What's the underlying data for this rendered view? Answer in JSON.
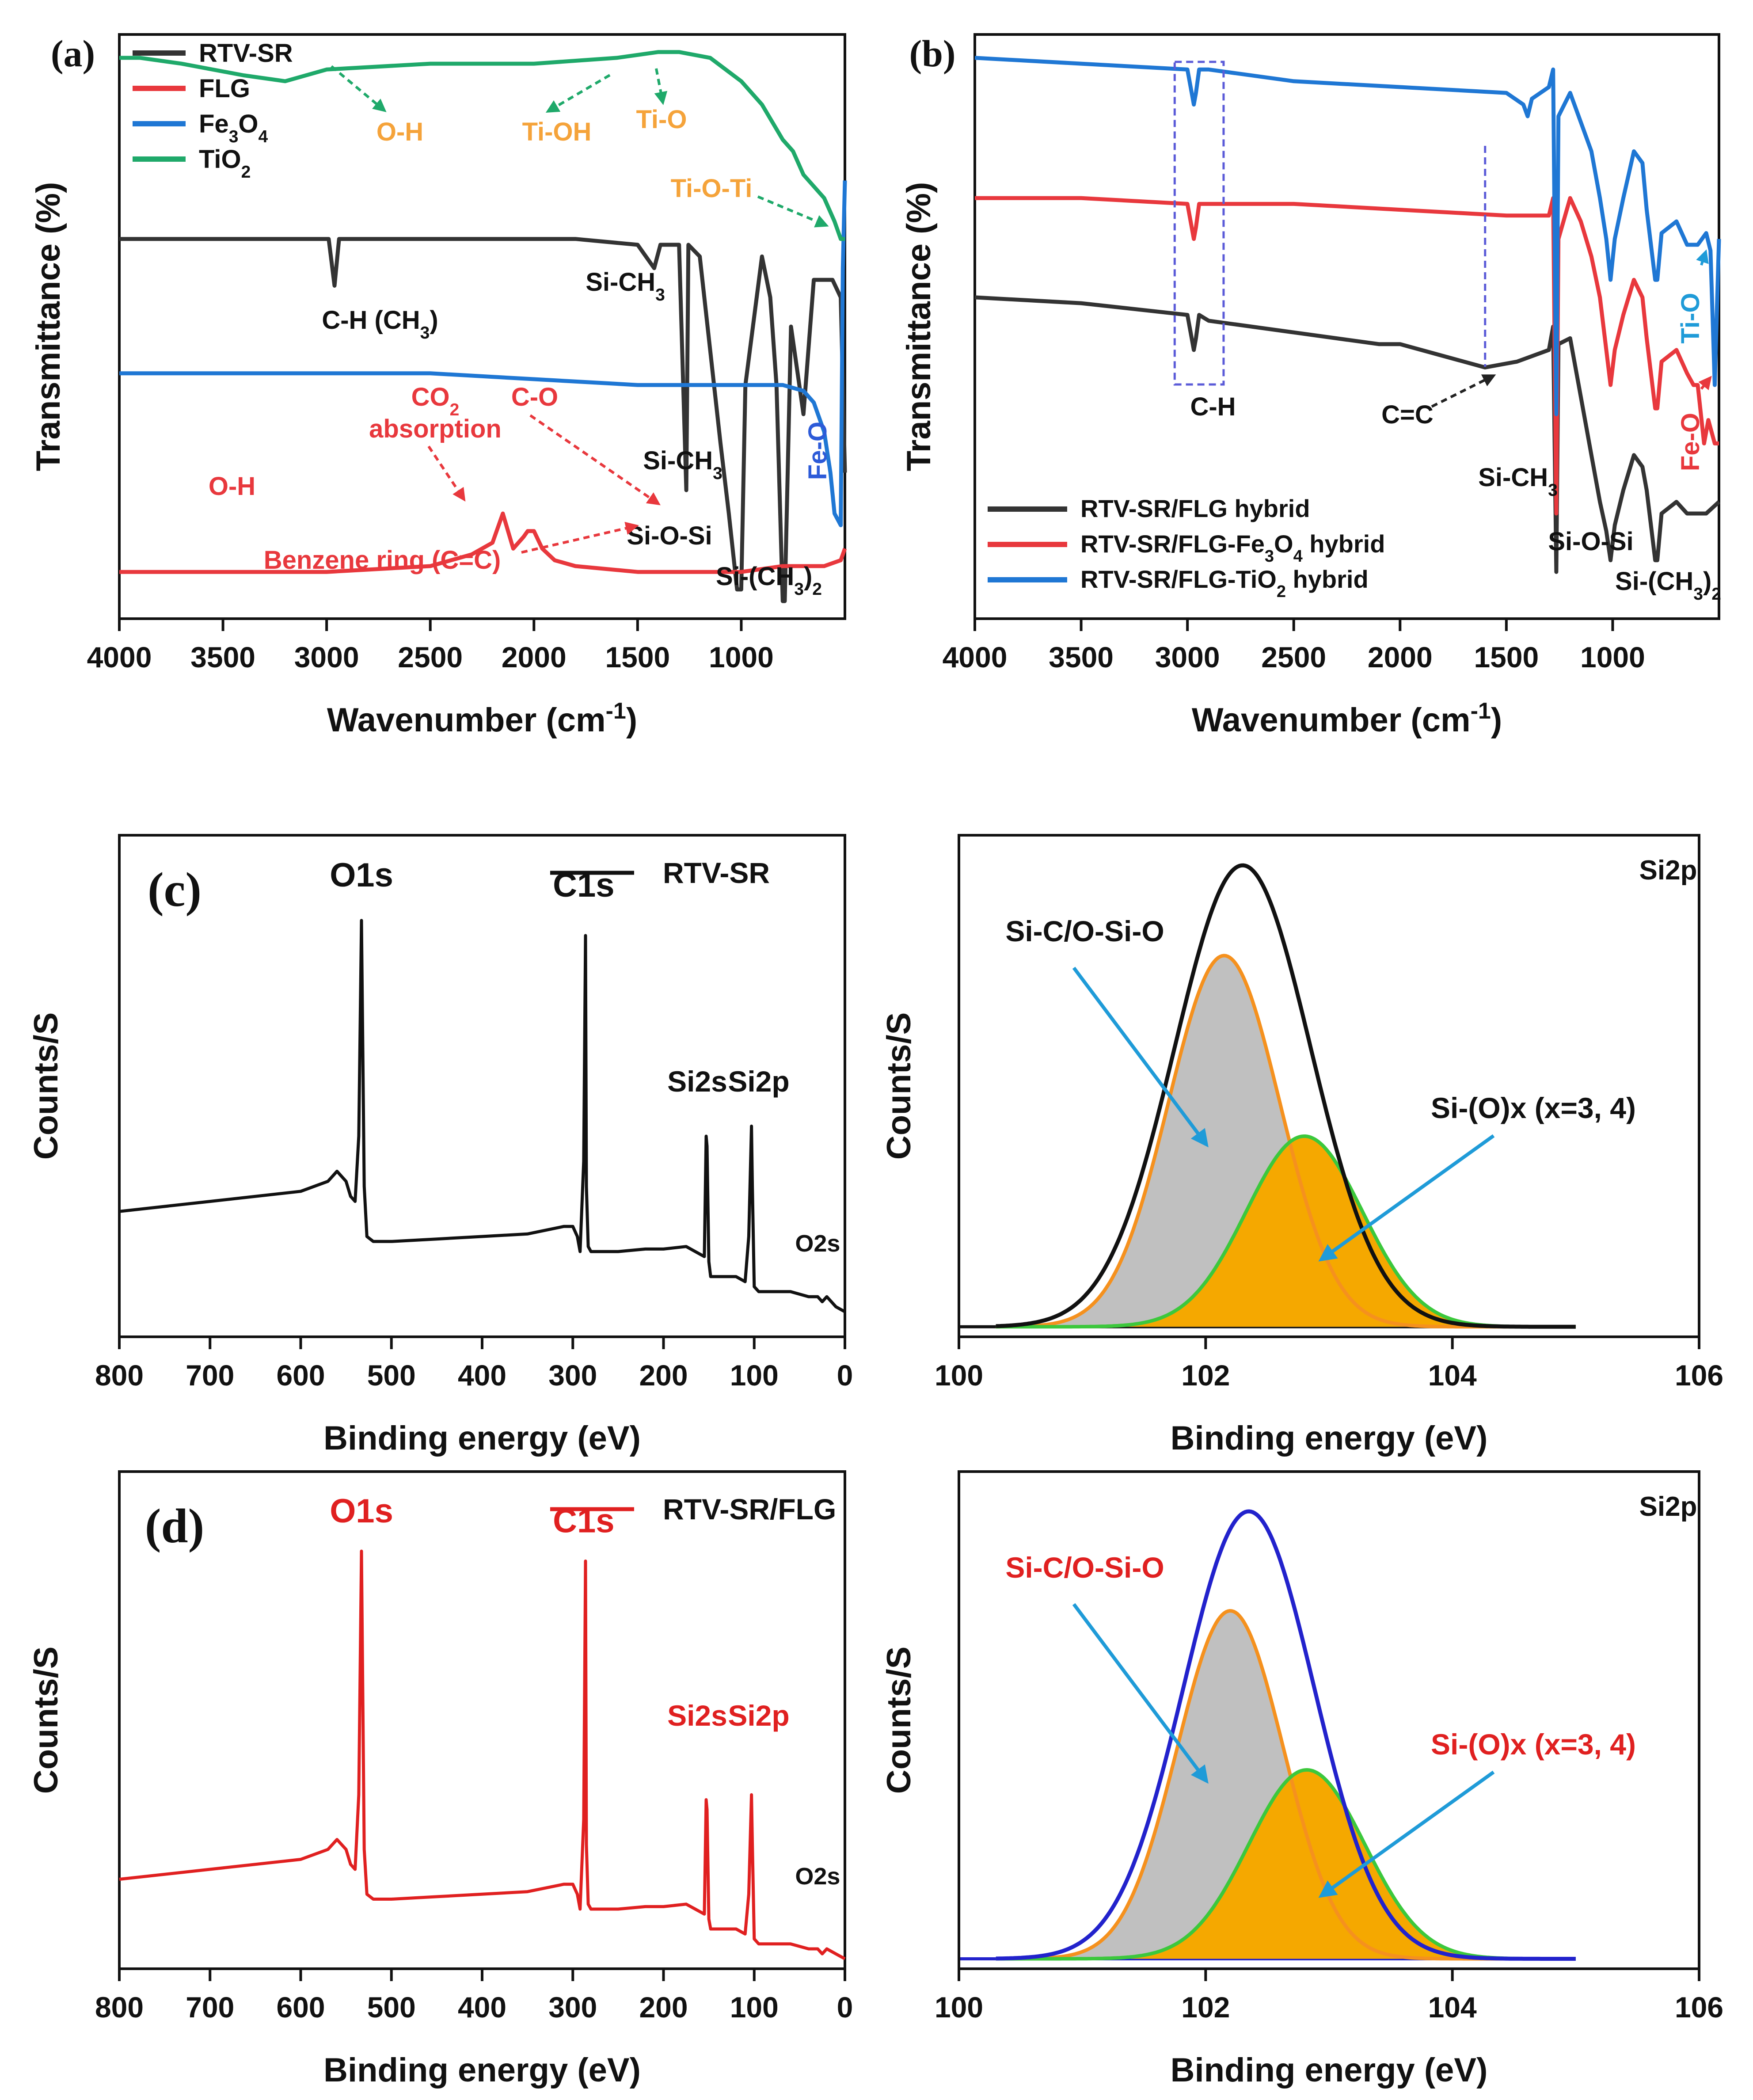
{
  "chart_data": [
    {
      "id": "a",
      "type": "line",
      "panel_label": "(a)",
      "title": "",
      "xlabel": "Wavenumber (cm-1)",
      "ylabel": "Transmittance (%)",
      "xlim": [
        4000,
        500
      ],
      "xticks": [
        4000,
        3500,
        3000,
        2500,
        2000,
        1500,
        1000
      ],
      "ylim": [
        0,
        100
      ],
      "grid": false,
      "legend_position": "top-left",
      "series": [
        {
          "name": "RTV-SR",
          "color": "#333333",
          "x": [
            4000,
            3500,
            3100,
            2990,
            2962,
            2940,
            2700,
            2300,
            1800,
            1500,
            1420,
            1390,
            1300,
            1265,
            1255,
            1200,
            1100,
            1060,
            1020,
            1000,
            980,
            900,
            860,
            830,
            800,
            790,
            760,
            700,
            650,
            600,
            560,
            520,
            500
          ],
          "y": [
            65,
            65,
            65,
            65,
            57,
            65,
            65,
            65,
            65,
            64,
            60,
            64,
            64,
            22,
            64,
            62,
            30,
            18,
            5,
            5,
            40,
            62,
            55,
            40,
            3,
            3,
            50,
            35,
            58,
            58,
            58,
            55,
            25
          ]
        },
        {
          "name": "FLG",
          "color": "#e8383d",
          "x": [
            4000,
            3500,
            3000,
            2500,
            2400,
            2300,
            2200,
            2150,
            2100,
            2050,
            2030,
            2000,
            1960,
            1900,
            1800,
            1500,
            1200,
            1000,
            800,
            600,
            520,
            500
          ],
          "y": [
            8,
            8,
            8,
            9,
            10,
            11,
            13,
            18,
            12,
            14,
            15,
            15,
            12,
            10,
            9,
            8,
            8,
            8,
            9,
            9,
            10,
            12
          ]
        },
        {
          "name": "Fe3O4",
          "color": "#1f77d4",
          "x": [
            4000,
            3500,
            3000,
            2500,
            2000,
            1500,
            1000,
            800,
            700,
            650,
            600,
            570,
            550,
            520,
            510,
            500
          ],
          "y": [
            42,
            42,
            42,
            42,
            41,
            40,
            40,
            40,
            39,
            37,
            32,
            25,
            18,
            16,
            60,
            75
          ]
        },
        {
          "name": "TiO2",
          "color": "#1fa96a",
          "x": [
            4000,
            3900,
            3700,
            3400,
            3200,
            3000,
            2500,
            2000,
            1600,
            1400,
            1300,
            1150,
            1000,
            900,
            850,
            800,
            750,
            700,
            650,
            600,
            550,
            520,
            500
          ],
          "y": [
            96,
            96,
            95,
            93,
            92,
            94,
            95,
            95,
            96,
            97,
            97,
            96,
            92,
            88,
            85,
            82,
            80,
            76,
            74,
            72,
            68,
            65,
            65
          ]
        }
      ],
      "annotations": [
        "O-H",
        "Ti-OH",
        "Ti-O",
        "Ti-O-Ti",
        "C-H (CH3)",
        "Si-CH3",
        "Si-CH3",
        "Fe-O",
        "CO2",
        "absorption",
        "C-O",
        "O-H",
        "Si-O-Si",
        "Benzene ring (C=C)",
        "Si-(CH3)2"
      ]
    },
    {
      "id": "b",
      "type": "line",
      "panel_label": "(b)",
      "title": "",
      "xlabel": "Wavenumber (cm-1)",
      "ylabel": "Transmittance (%)",
      "xlim": [
        4000,
        500
      ],
      "xticks": [
        4000,
        3500,
        3000,
        2500,
        2000,
        1500,
        1000
      ],
      "ylim": [
        0,
        100
      ],
      "grid": false,
      "legend_position": "bottom-left",
      "series": [
        {
          "name": "RTV-SR/FLG hybrid",
          "color": "#333333",
          "x": [
            4000,
            3500,
            3000,
            2970,
            2960,
            2945,
            2900,
            2500,
            2100,
            2000,
            1800,
            1600,
            1450,
            1300,
            1280,
            1265,
            1255,
            1200,
            1150,
            1100,
            1060,
            1030,
            1010,
            990,
            950,
            900,
            860,
            840,
            800,
            790,
            770,
            700,
            650,
            600,
            560,
            500
          ],
          "y": [
            55,
            54,
            52,
            46,
            48,
            52,
            51,
            49,
            47,
            47,
            45,
            43,
            44,
            46,
            50,
            8,
            47,
            48,
            38,
            28,
            20,
            15,
            10,
            16,
            22,
            28,
            26,
            22,
            10,
            10,
            18,
            20,
            18,
            18,
            18,
            20
          ]
        },
        {
          "name": "RTV-SR/FLG-Fe3O4 hybrid",
          "color": "#e8383d",
          "x": [
            4000,
            3500,
            3000,
            2970,
            2960,
            2945,
            2900,
            2500,
            2000,
            1500,
            1300,
            1280,
            1265,
            1255,
            1200,
            1150,
            1100,
            1060,
            1030,
            1010,
            990,
            950,
            900,
            860,
            840,
            800,
            790,
            770,
            700,
            650,
            620,
            600,
            570,
            550,
            520,
            500
          ],
          "y": [
            72,
            72,
            71,
            65,
            67,
            71,
            71,
            71,
            70,
            69,
            69,
            72,
            18,
            65,
            72,
            68,
            62,
            55,
            46,
            40,
            46,
            52,
            58,
            55,
            48,
            36,
            36,
            44,
            46,
            42,
            40,
            40,
            30,
            34,
            30,
            30
          ]
        },
        {
          "name": "RTV-SR/FLG-TiO2 hybrid",
          "color": "#1f77d4",
          "x": [
            4000,
            3500,
            3000,
            2970,
            2960,
            2945,
            2900,
            2500,
            2000,
            1500,
            1420,
            1400,
            1380,
            1300,
            1280,
            1265,
            1255,
            1200,
            1150,
            1100,
            1060,
            1030,
            1010,
            990,
            950,
            900,
            860,
            840,
            800,
            790,
            770,
            700,
            650,
            600,
            560,
            540,
            520,
            500
          ],
          "y": [
            96,
            95,
            94,
            88,
            90,
            94,
            94,
            92,
            91,
            90,
            88,
            86,
            89,
            91,
            94,
            35,
            86,
            90,
            85,
            80,
            72,
            65,
            58,
            65,
            72,
            80,
            78,
            70,
            58,
            58,
            66,
            68,
            64,
            64,
            66,
            63,
            40,
            65
          ]
        }
      ],
      "annotations": [
        "C-H",
        "C=C",
        "Si-CH3",
        "Si-O-Si",
        "Si-(CH3)2",
        "Ti-O",
        "Fe-O"
      ]
    },
    {
      "id": "c-left",
      "type": "line",
      "panel_label": "(c)",
      "title": "",
      "xlabel": "Binding energy (eV)",
      "ylabel": "Counts/S",
      "xlim": [
        800,
        0
      ],
      "xticks": [
        800,
        700,
        600,
        500,
        400,
        300,
        200,
        100,
        0
      ],
      "ylim": [
        0,
        100
      ],
      "grid": false,
      "legend_position": "top-right",
      "series": [
        {
          "name": "RTV-SR",
          "color": "#111111",
          "x": [
            800,
            700,
            600,
            570,
            560,
            550,
            545,
            540,
            536,
            533,
            530,
            527,
            520,
            500,
            450,
            400,
            350,
            310,
            300,
            295,
            292,
            288,
            286,
            285,
            283,
            280,
            270,
            250,
            220,
            200,
            175,
            165,
            155,
            153,
            152,
            150,
            148,
            140,
            130,
            120,
            110,
            106,
            103,
            102,
            100,
            95,
            90,
            60,
            40,
            30,
            25,
            20,
            10,
            0
          ],
          "y": [
            25,
            27,
            29,
            31,
            33,
            31,
            28,
            27,
            40,
            83,
            30,
            20,
            19,
            19,
            19.5,
            20,
            20.5,
            22,
            22,
            20,
            17,
            35,
            80,
            30,
            18,
            17,
            17,
            17,
            17.5,
            17.5,
            18,
            17,
            16,
            40,
            38,
            15,
            12,
            12,
            12,
            12,
            11,
            20,
            42,
            30,
            10,
            9,
            9,
            9,
            8,
            8,
            7,
            8,
            6,
            5
          ]
        }
      ],
      "annotations": [
        "O1s",
        "C1s",
        "Si2s",
        "Si2p",
        "O2s"
      ]
    },
    {
      "id": "c-right",
      "type": "area",
      "panel_label": "",
      "title": "Si2p",
      "xlabel": "Binding energy (eV)",
      "ylabel": "Counts/S",
      "xlim": [
        100,
        106
      ],
      "xticks": [
        100,
        102,
        104,
        106
      ],
      "ylim": [
        0,
        100
      ],
      "grid": false,
      "series": [
        {
          "name": "envelope",
          "color": "#111111",
          "center": 102.3,
          "sigma": 0.55,
          "amplitude": 92
        },
        {
          "name": "Si-C/O-Si-O",
          "color": "#f5911e",
          "fill": "#c0c0c0",
          "center": 102.15,
          "sigma": 0.45,
          "amplitude": 74
        },
        {
          "name": "Si-(O)x (x=3, 4)",
          "color": "#3cc83c",
          "fill": "#f5a800",
          "center": 102.8,
          "sigma": 0.47,
          "amplitude": 38
        }
      ],
      "baseline": 2,
      "annotations": [
        "Si-C/O-Si-O",
        "Si-(O)x (x=3, 4)"
      ]
    },
    {
      "id": "d-left",
      "type": "line",
      "panel_label": "(d)",
      "title": "",
      "xlabel": "Binding energy (eV)",
      "ylabel": "Counts/S",
      "xlim": [
        800,
        0
      ],
      "xticks": [
        800,
        700,
        600,
        500,
        400,
        300,
        200,
        100,
        0
      ],
      "ylim": [
        0,
        100
      ],
      "grid": false,
      "legend_position": "top-right",
      "series": [
        {
          "name": "RTV-SR/FLG",
          "color": "#e02020",
          "x": [
            800,
            700,
            600,
            570,
            560,
            550,
            545,
            540,
            536,
            533,
            530,
            527,
            520,
            500,
            450,
            400,
            350,
            310,
            300,
            295,
            292,
            288,
            286,
            285,
            283,
            280,
            270,
            250,
            220,
            200,
            175,
            165,
            155,
            153,
            152,
            150,
            148,
            140,
            130,
            120,
            110,
            106,
            103,
            102,
            100,
            95,
            90,
            60,
            40,
            30,
            25,
            20,
            10,
            0
          ],
          "y": [
            18,
            20,
            22,
            24,
            26,
            24,
            21,
            20,
            35,
            84,
            24,
            15,
            14,
            14,
            14.5,
            15,
            15.5,
            17,
            17,
            15,
            12,
            30,
            82,
            25,
            13,
            12,
            12,
            12,
            12.5,
            12.5,
            13,
            12,
            11,
            34,
            32,
            10,
            8,
            8,
            8,
            8,
            7,
            15,
            35,
            25,
            6,
            5,
            5,
            5,
            4,
            4,
            3,
            4,
            3,
            2
          ]
        }
      ],
      "annotations": [
        "O1s",
        "C1s",
        "Si2s",
        "Si2p",
        "O2s"
      ]
    },
    {
      "id": "d-right",
      "type": "area",
      "panel_label": "",
      "title": "Si2p",
      "xlabel": "Binding energy (eV)",
      "ylabel": "Counts/S",
      "xlim": [
        100,
        106
      ],
      "xticks": [
        100,
        102,
        104,
        106
      ],
      "ylim": [
        0,
        100
      ],
      "grid": false,
      "series": [
        {
          "name": "envelope",
          "color": "#2222cc",
          "center": 102.35,
          "sigma": 0.53,
          "amplitude": 90
        },
        {
          "name": "Si-C/O-Si-O",
          "color": "#f5911e",
          "fill": "#c0c0c0",
          "center": 102.2,
          "sigma": 0.43,
          "amplitude": 70
        },
        {
          "name": "Si-(O)x (x=3, 4)",
          "color": "#3cc83c",
          "fill": "#f5a800",
          "center": 102.82,
          "sigma": 0.47,
          "amplitude": 38
        }
      ],
      "baseline": 2,
      "annotations": [
        "Si-C/O-Si-O",
        "Si-(O)x (x=3, 4)"
      ]
    }
  ]
}
